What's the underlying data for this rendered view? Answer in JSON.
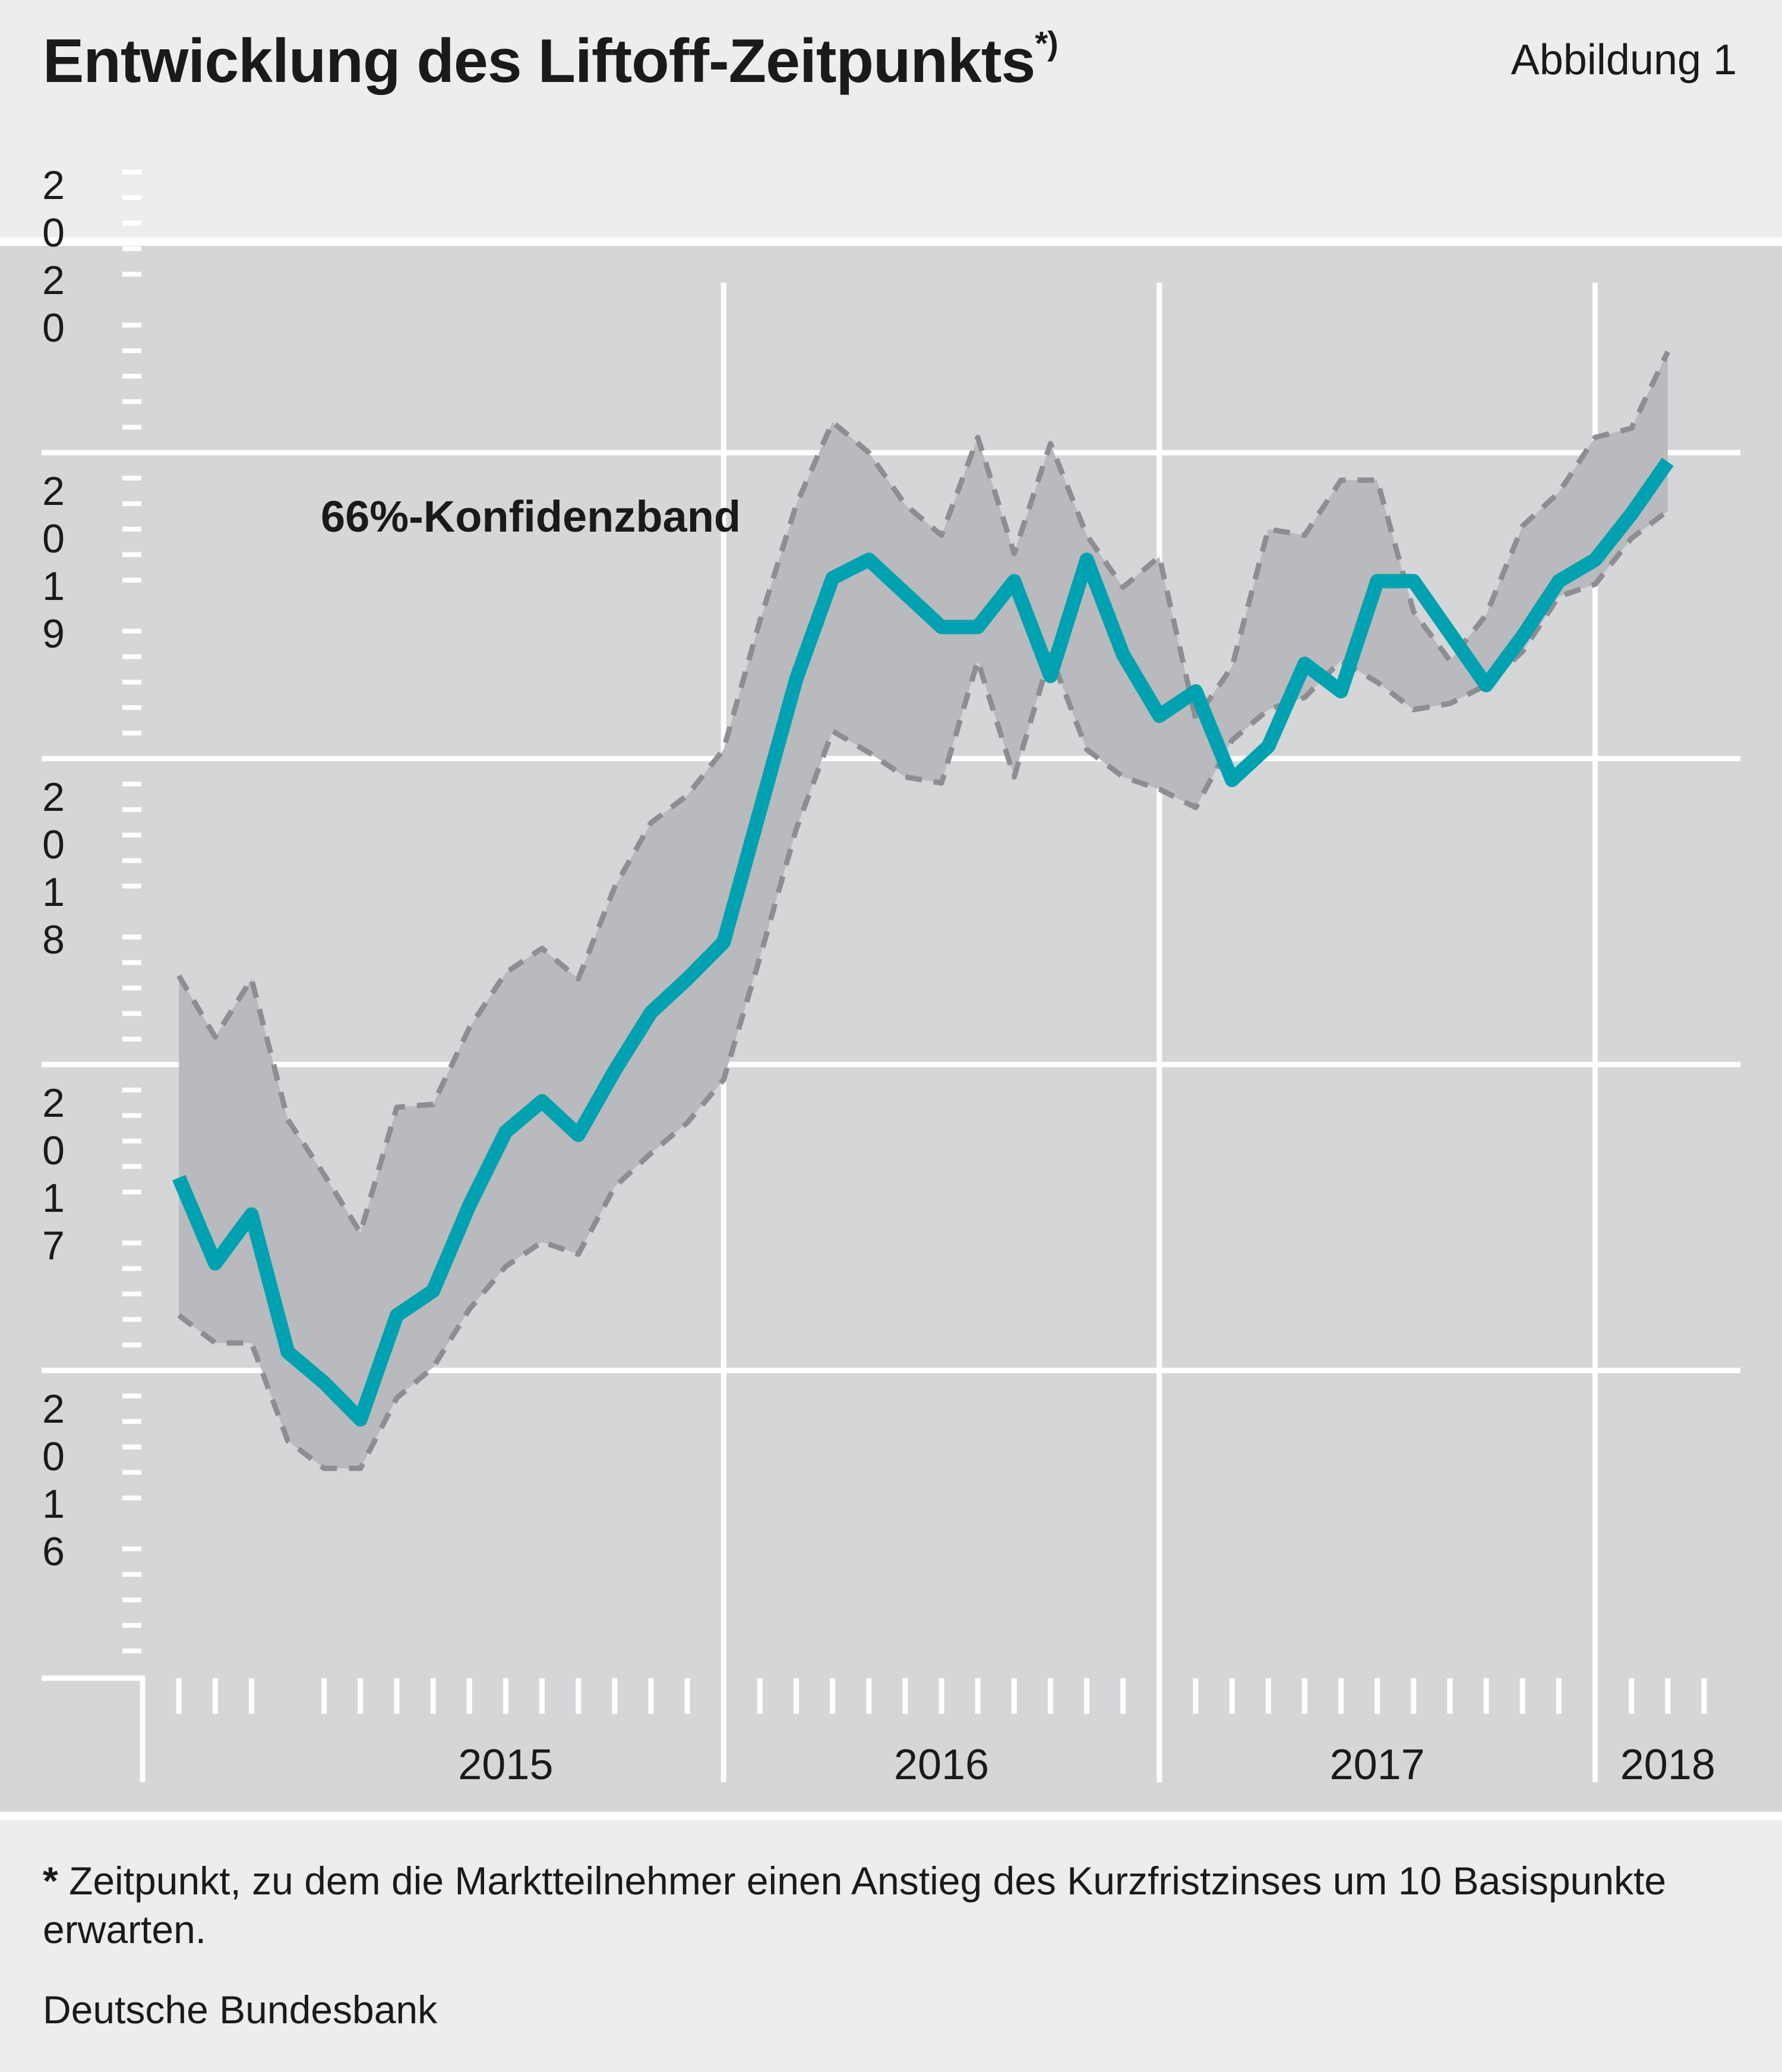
{
  "header": {
    "title": "Entwicklung des Liftoff-Zeitpunkts",
    "title_sup": "*)",
    "figure_label": "Abbildung 1"
  },
  "footer": {
    "footnote_star": "*",
    "footnote": "Zeitpunkt, zu dem die Marktteilnehmer einen Anstieg des Kurzfristzinses um 10 Basispunkte erwarten.",
    "source": "Deutsche Bundesbank"
  },
  "colors": {
    "background": "#ecedec",
    "plot_background": "#d5d6d8",
    "band_fill": "#b9babd",
    "band_border": "#8d8e91",
    "line": "#00a1b0",
    "grid": "#ffffff"
  },
  "chart_data": {
    "type": "line",
    "title": "Entwicklung des Liftoff-Zeitpunkts",
    "annotation": "66%-Konfidenzband",
    "x_tick_labels": [
      "2015",
      "2016",
      "2017",
      "2018"
    ],
    "x_start": "2014-10",
    "x_range": [
      "2014-09",
      "2018-05"
    ],
    "y_tick_labels": [
      "2016",
      "2017",
      "2018",
      "2019",
      "2020"
    ],
    "y_range": [
      2016.0,
      2021.0
    ],
    "grid": true,
    "series": [
      {
        "name": "",
        "role": "median",
        "values": [
          2017.63,
          2017.35,
          2017.51,
          2017.06,
          2016.96,
          2016.84,
          2017.18,
          2017.26,
          2017.54,
          2017.78,
          2017.88,
          2017.77,
          2017.98,
          2018.17,
          2018.28,
          2018.4,
          2018.83,
          2019.26,
          2019.59,
          2019.65,
          2019.54,
          2019.43,
          2019.43,
          2019.58,
          2019.27,
          2019.65,
          2019.34,
          2019.14,
          2019.22,
          2018.93,
          2019.04,
          2019.31,
          2019.22,
          2019.58,
          2019.58,
          2019.41,
          2019.24,
          2019.4,
          2019.58,
          2019.65,
          2019.8,
          2019.97
        ]
      },
      {
        "name": "",
        "role": "band_upper",
        "values": [
          2018.29,
          2018.09,
          2018.28,
          2017.82,
          2017.64,
          2017.45,
          2017.86,
          2017.87,
          2018.12,
          2018.3,
          2018.38,
          2018.28,
          2018.58,
          2018.79,
          2018.88,
          2019.03,
          2019.45,
          2019.83,
          2020.1,
          2020.0,
          2019.83,
          2019.73,
          2020.05,
          2019.67,
          2020.03,
          2019.73,
          2019.56,
          2019.66,
          2019.13,
          2019.3,
          2019.75,
          2019.73,
          2019.91,
          2019.91,
          2019.48,
          2019.32,
          2019.47,
          2019.76,
          2019.87,
          2020.05,
          2020.08,
          2020.33
        ]
      },
      {
        "name": "",
        "role": "band_lower",
        "values": [
          2017.18,
          2017.09,
          2017.09,
          2016.77,
          2016.68,
          2016.68,
          2016.91,
          2017.01,
          2017.2,
          2017.34,
          2017.42,
          2017.38,
          2017.6,
          2017.71,
          2017.81,
          2017.95,
          2018.35,
          2018.77,
          2019.09,
          2019.02,
          2018.94,
          2018.92,
          2019.32,
          2018.94,
          2019.34,
          2019.03,
          2018.94,
          2018.9,
          2018.84,
          2019.06,
          2019.16,
          2019.2,
          2019.32,
          2019.25,
          2019.16,
          2019.18,
          2019.24,
          2019.35,
          2019.53,
          2019.57,
          2019.72,
          2019.81
        ]
      }
    ]
  }
}
